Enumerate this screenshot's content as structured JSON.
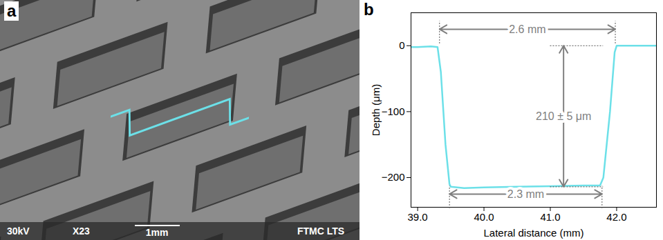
{
  "panel_a": {
    "type": "image",
    "panel_label": "a",
    "texts": [
      "30kV",
      "X23",
      "1mm",
      "FTMC LTS"
    ]
  },
  "chart_data": {
    "type": "line",
    "panel_label": "b",
    "x_label": "Lateral distance (mm)",
    "y_label": "Depth (μm)",
    "x": [
      38.9,
      39.0,
      39.2,
      39.3,
      39.35,
      39.42,
      39.48,
      39.5,
      39.7,
      40.0,
      40.5,
      41.0,
      41.5,
      41.75,
      41.8,
      41.9,
      41.97,
      42.0,
      42.3,
      42.6
    ],
    "series": [
      {
        "color": "#6ce0e8",
        "values": [
          -2,
          -2,
          -1,
          -2,
          -40,
          -150,
          -210,
          -214,
          -216,
          -215,
          -214,
          -213,
          -212,
          -212,
          -200,
          -100,
          -10,
          0,
          0,
          0
        ]
      }
    ],
    "xlim": [
      38.9,
      42.6
    ],
    "xticks": [
      39,
      40,
      41,
      42
    ],
    "ylim": [
      -245,
      50
    ],
    "yticks": [
      -200,
      -100,
      0
    ],
    "grid": false,
    "annotations": [
      {
        "text": "2.6 mm",
        "x1": 39.33,
        "x2": 41.98,
        "y": 25
      },
      {
        "text": "2.3 mm",
        "x1": 39.48,
        "x2": 41.78,
        "y": -225
      },
      {
        "text": "210 ± 5 μm",
        "x": 41.2,
        "y1": 0,
        "y2": -214
      }
    ]
  }
}
